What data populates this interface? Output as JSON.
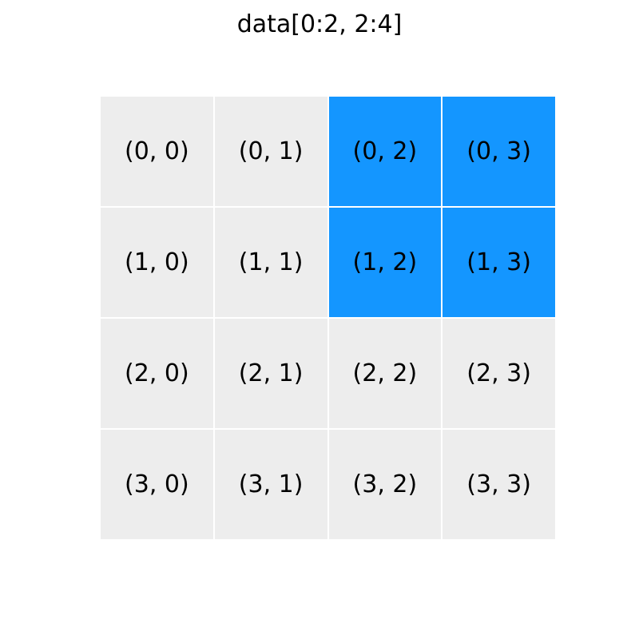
{
  "title": "data[0:2, 2:4]",
  "colors": {
    "highlight": "#1496ff",
    "base": "#ededed",
    "separator": "#ffffff"
  },
  "grid": {
    "rows": 4,
    "cols": 4,
    "selected_rows": [
      0,
      2
    ],
    "selected_cols": [
      2,
      4
    ],
    "cells": [
      [
        "(0, 0)",
        "(0, 1)",
        "(0, 2)",
        "(0, 3)"
      ],
      [
        "(1, 0)",
        "(1, 1)",
        "(1, 2)",
        "(1, 3)"
      ],
      [
        "(2, 0)",
        "(2, 1)",
        "(2, 2)",
        "(2, 3)"
      ],
      [
        "(3, 0)",
        "(3, 1)",
        "(3, 2)",
        "(3, 3)"
      ]
    ]
  }
}
